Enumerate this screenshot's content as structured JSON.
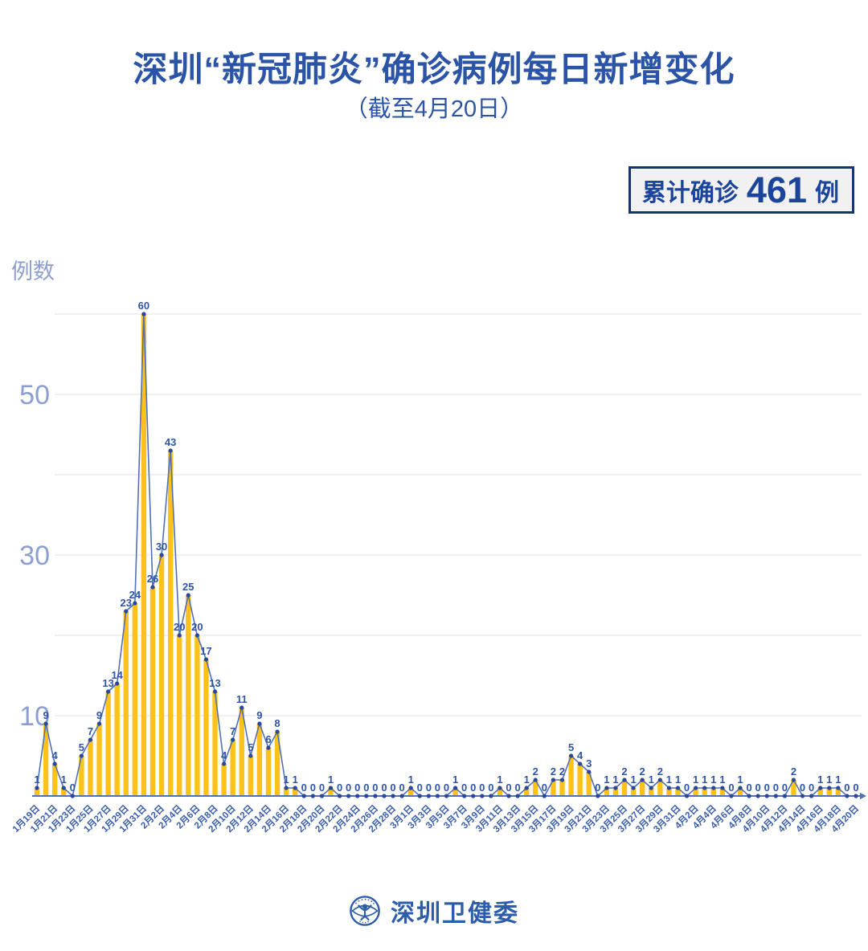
{
  "title": "深圳“新冠肺炎”确诊病例每日新增变化",
  "subtitle": "（截至4月20日）",
  "badge": {
    "prefix": "累计确诊",
    "value": "461",
    "suffix": "例"
  },
  "y_unit_label": "例数",
  "footer": {
    "org": "深圳卫健委"
  },
  "chart_data": {
    "type": "bar",
    "title": "深圳“新冠肺炎”确诊病例每日新增变化（截至4月20日）",
    "xlabel": "",
    "ylabel": "例数",
    "ylim": [
      0,
      62
    ],
    "grid": true,
    "gridline_values": [
      10,
      20,
      30,
      40,
      50,
      60
    ],
    "y_tick_labels": [
      10,
      30,
      50
    ],
    "x_label_every": 2,
    "categories": [
      "1月19日",
      "1月20日",
      "1月21日",
      "1月22日",
      "1月23日",
      "1月24日",
      "1月25日",
      "1月26日",
      "1月27日",
      "1月28日",
      "1月29日",
      "1月30日",
      "1月31日",
      "2月1日",
      "2月2日",
      "2月3日",
      "2月4日",
      "2月5日",
      "2月6日",
      "2月7日",
      "2月8日",
      "2月9日",
      "2月10日",
      "2月11日",
      "2月12日",
      "2月13日",
      "2月14日",
      "2月15日",
      "2月16日",
      "2月17日",
      "2月18日",
      "2月19日",
      "2月20日",
      "2月21日",
      "2月22日",
      "2月23日",
      "2月24日",
      "2月25日",
      "2月26日",
      "2月27日",
      "2月28日",
      "2月29日",
      "3月1日",
      "3月2日",
      "3月3日",
      "3月4日",
      "3月5日",
      "3月6日",
      "3月7日",
      "3月8日",
      "3月9日",
      "3月10日",
      "3月11日",
      "3月12日",
      "3月13日",
      "3月14日",
      "3月15日",
      "3月16日",
      "3月17日",
      "3月18日",
      "3月19日",
      "3月20日",
      "3月21日",
      "3月22日",
      "3月23日",
      "3月24日",
      "3月25日",
      "3月26日",
      "3月27日",
      "3月28日",
      "3月29日",
      "3月30日",
      "3月31日",
      "4月1日",
      "4月2日",
      "4月3日",
      "4月4日",
      "4月5日",
      "4月6日",
      "4月7日",
      "4月8日",
      "4月9日",
      "4月10日",
      "4月11日",
      "4月12日",
      "4月13日",
      "4月14日",
      "4月15日",
      "4月16日",
      "4月17日",
      "4月18日",
      "4月19日",
      "4月20日"
    ],
    "values": [
      1,
      9,
      4,
      1,
      0,
      5,
      7,
      9,
      13,
      14,
      23,
      24,
      60,
      26,
      30,
      43,
      20,
      25,
      20,
      17,
      13,
      4,
      7,
      11,
      5,
      9,
      6,
      8,
      1,
      1,
      0,
      0,
      0,
      1,
      0,
      0,
      0,
      0,
      0,
      0,
      0,
      0,
      1,
      0,
      0,
      0,
      0,
      1,
      0,
      0,
      0,
      0,
      1,
      0,
      0,
      1,
      2,
      0,
      2,
      2,
      5,
      4,
      3,
      0,
      1,
      1,
      2,
      1,
      2,
      1,
      2,
      1,
      1,
      0,
      1,
      1,
      1,
      1,
      0,
      1,
      0,
      0,
      0,
      0,
      0,
      2,
      0,
      0,
      1,
      1,
      1,
      0,
      0
    ],
    "colors": {
      "bar": "#fcc21b",
      "line": "#5170b6",
      "dot": "#27489c",
      "value_label": "#2f55a5",
      "axis": "#5170b6",
      "grid": "#e8e8e8",
      "y_label": "#8d9fd1",
      "x_tick_label": "#3a5dac"
    }
  }
}
